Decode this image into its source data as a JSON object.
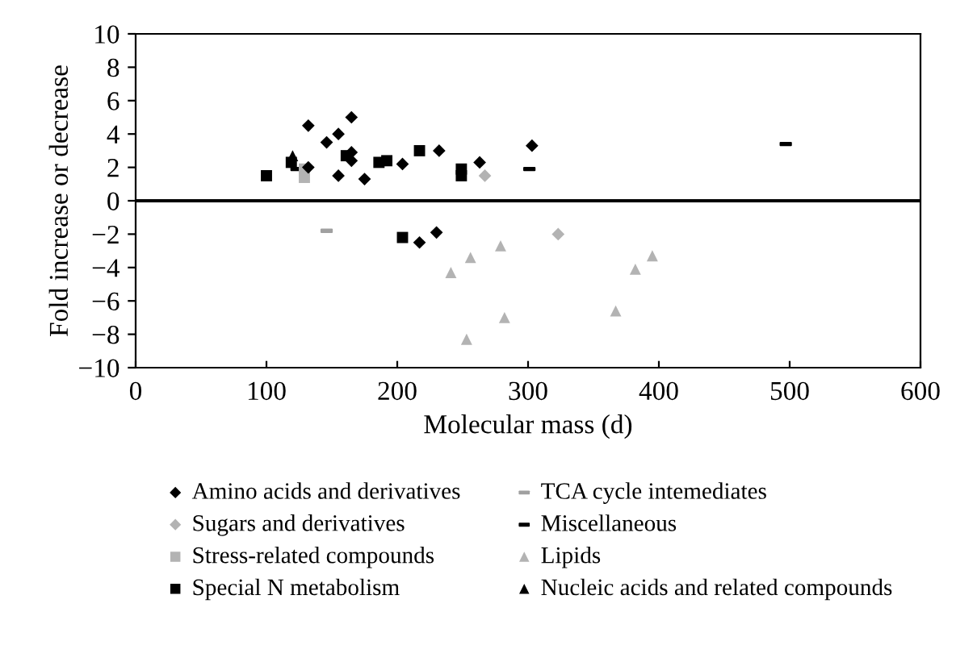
{
  "chart_data": {
    "type": "scatter",
    "xlabel": "Molecular mass (d)",
    "ylabel": "Fold increase or decrease",
    "xlim": [
      0,
      600
    ],
    "xticks": [
      0,
      100,
      200,
      300,
      400,
      500,
      600
    ],
    "ylim": [
      -10,
      10
    ],
    "yticks": [
      -10,
      -8,
      -6,
      -4,
      -2,
      0,
      2,
      4,
      6,
      8,
      10
    ],
    "grid": false,
    "legend": "bottom",
    "ref_lines": [
      {
        "axis": "y",
        "value": 0,
        "color": "#000000"
      }
    ],
    "series": [
      {
        "name": "Amino acids and derivatives",
        "color": "#000000",
        "marker": "diamond",
        "x": [
          132,
          146,
          155,
          165,
          165,
          165,
          155,
          132,
          175,
          204,
          232,
          263,
          303,
          217,
          230
        ],
        "values": [
          4.5,
          3.5,
          4.0,
          5.0,
          2.9,
          2.4,
          1.5,
          2.0,
          1.3,
          2.2,
          3.0,
          2.3,
          3.3,
          -2.5,
          -1.9
        ]
      },
      {
        "name": "Sugars and derivatives",
        "color": "#b3b3b3",
        "marker": "diamond",
        "x": [
          267,
          323
        ],
        "values": [
          1.5,
          -2.0
        ]
      },
      {
        "name": "Stress-related compounds",
        "color": "#b3b3b3",
        "marker": "square",
        "x": [
          129,
          129
        ],
        "values": [
          1.9,
          1.4
        ]
      },
      {
        "name": "Special N metabolism",
        "color": "#000000",
        "marker": "square",
        "x": [
          100,
          119,
          161,
          186,
          192,
          217,
          249,
          249,
          204
        ],
        "values": [
          1.5,
          2.3,
          2.7,
          2.3,
          2.4,
          3.0,
          1.9,
          1.5,
          -2.2
        ]
      },
      {
        "name": "TCA cycle intemediates",
        "color": "#a0a0a0",
        "x": [
          146
        ],
        "values": [
          -1.8
        ]
      },
      {
        "name": "Miscellaneous",
        "color": "#000000",
        "x": [
          123,
          301,
          497
        ],
        "values": [
          1.9,
          1.9,
          3.4
        ]
      },
      {
        "name": "Lipids",
        "color": "#b3b3b3",
        "marker": "triangle",
        "x": [
          241,
          256,
          279,
          282,
          253,
          367,
          382,
          395
        ],
        "values": [
          -4.3,
          -3.4,
          -2.7,
          -7.0,
          -8.3,
          -6.6,
          -4.1,
          -3.3
        ]
      },
      {
        "name": "Nucleic acids and related compounds",
        "color": "#000000",
        "marker": "triangle",
        "x": [
          120
        ],
        "values": [
          2.7
        ]
      }
    ]
  }
}
